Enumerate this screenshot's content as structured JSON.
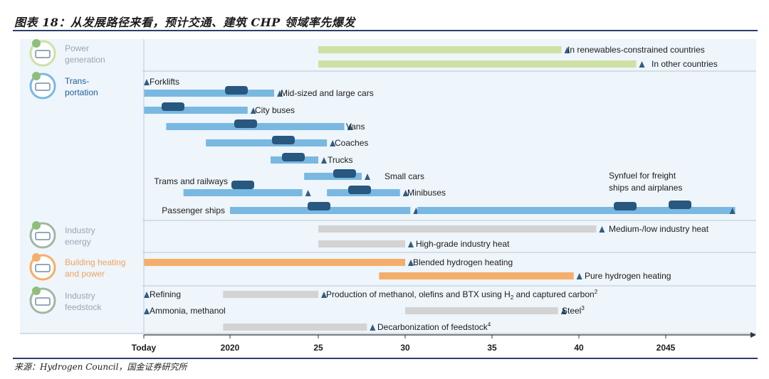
{
  "figure_title": "图表 18：从发展路径来看，预计交通、建筑 CHP 领域率先爆发",
  "source": "来源：Hydrogen Council，国金证券研究所",
  "colors": {
    "power": "#cfe0a5",
    "transport": "#79b8e1",
    "industry": "#d3d3d3",
    "building": "#f5ae69",
    "feedstock": "#d3d3d3",
    "marker": "#315d83",
    "axis": "#333333"
  },
  "chart_data": {
    "type": "gantt",
    "x_ticks": [
      "Today",
      "2020",
      "25",
      "30",
      "35",
      "40",
      "2045"
    ],
    "sectors": [
      {
        "key": "power",
        "label": [
          "Power",
          "generation"
        ],
        "icon": "power-generation-icon",
        "items": [
          {
            "label": "In renewables-constrained countries",
            "start": 2025,
            "end": 2039.0
          },
          {
            "label": "In other countries",
            "start": 2025,
            "end": 2043.3
          }
        ]
      },
      {
        "key": "transport",
        "label": [
          "Trans-",
          "portation"
        ],
        "icon": "transportation-icon",
        "items": [
          {
            "label": "Forklifts",
            "start": null,
            "end": 2015
          },
          {
            "label": "Mid-sized and large cars",
            "start": 2015,
            "end": 2022.5
          },
          {
            "label": "City buses",
            "start": 2015,
            "end": 2021.0
          },
          {
            "label": "Vans",
            "start": 2016.3,
            "end": 2026.5
          },
          {
            "label": "Coaches",
            "start": 2018.6,
            "end": 2025.5
          },
          {
            "label": "Trucks",
            "start": 2022.3,
            "end": 2025.0
          },
          {
            "label": "Small cars",
            "start": 2024.2,
            "end": 2027.5
          },
          {
            "label": "Trams and railways",
            "start": 2017.3,
            "end": 2024.1
          },
          {
            "label": "Minibuses",
            "start": 2025.5,
            "end": 2029.7
          },
          {
            "label": "Passenger ships",
            "start": 2020.0,
            "end": 2030.3
          },
          {
            "label": "Synfuel for freight ships and airplanes",
            "start": 2030.7,
            "end": 2049.0
          }
        ]
      },
      {
        "key": "industry",
        "label": [
          "Industry",
          "energy"
        ],
        "icon": "industry-energy-icon",
        "items": [
          {
            "label": "Medium-/low industry heat",
            "start": 2025,
            "end": 2041.0
          },
          {
            "label": "High-grade industry heat",
            "start": 2025,
            "end": 2030.0
          }
        ]
      },
      {
        "key": "building",
        "label": [
          "Building heating",
          "and power"
        ],
        "icon": "building-heating-icon",
        "items": [
          {
            "label": "Blended hydrogen heating",
            "start": 2015,
            "end": 2030.0
          },
          {
            "label": "Pure hydrogen heating",
            "start": 2028.5,
            "end": 2039.7
          }
        ]
      },
      {
        "key": "feedstock",
        "label": [
          "Industry",
          "feedstock"
        ],
        "icon": "industry-feedstock-icon",
        "items": [
          {
            "label": "Refining",
            "start": null,
            "end": 2015
          },
          {
            "label": "Production of methanol, olefins and BTX using H",
            "sub": "2",
            "suffix": " and captured carbon",
            "sup": "2",
            "start": 2019.6,
            "end": 2025.0
          },
          {
            "label": "Ammonia, methanol",
            "start": null,
            "end": 2015
          },
          {
            "label": "Steel",
            "sup": "3",
            "start": 2030.0,
            "end": 2038.8
          },
          {
            "label": "Decarbonization of feedstock",
            "sup": "4",
            "start": 2019.6,
            "end": 2027.8
          }
        ]
      }
    ]
  }
}
